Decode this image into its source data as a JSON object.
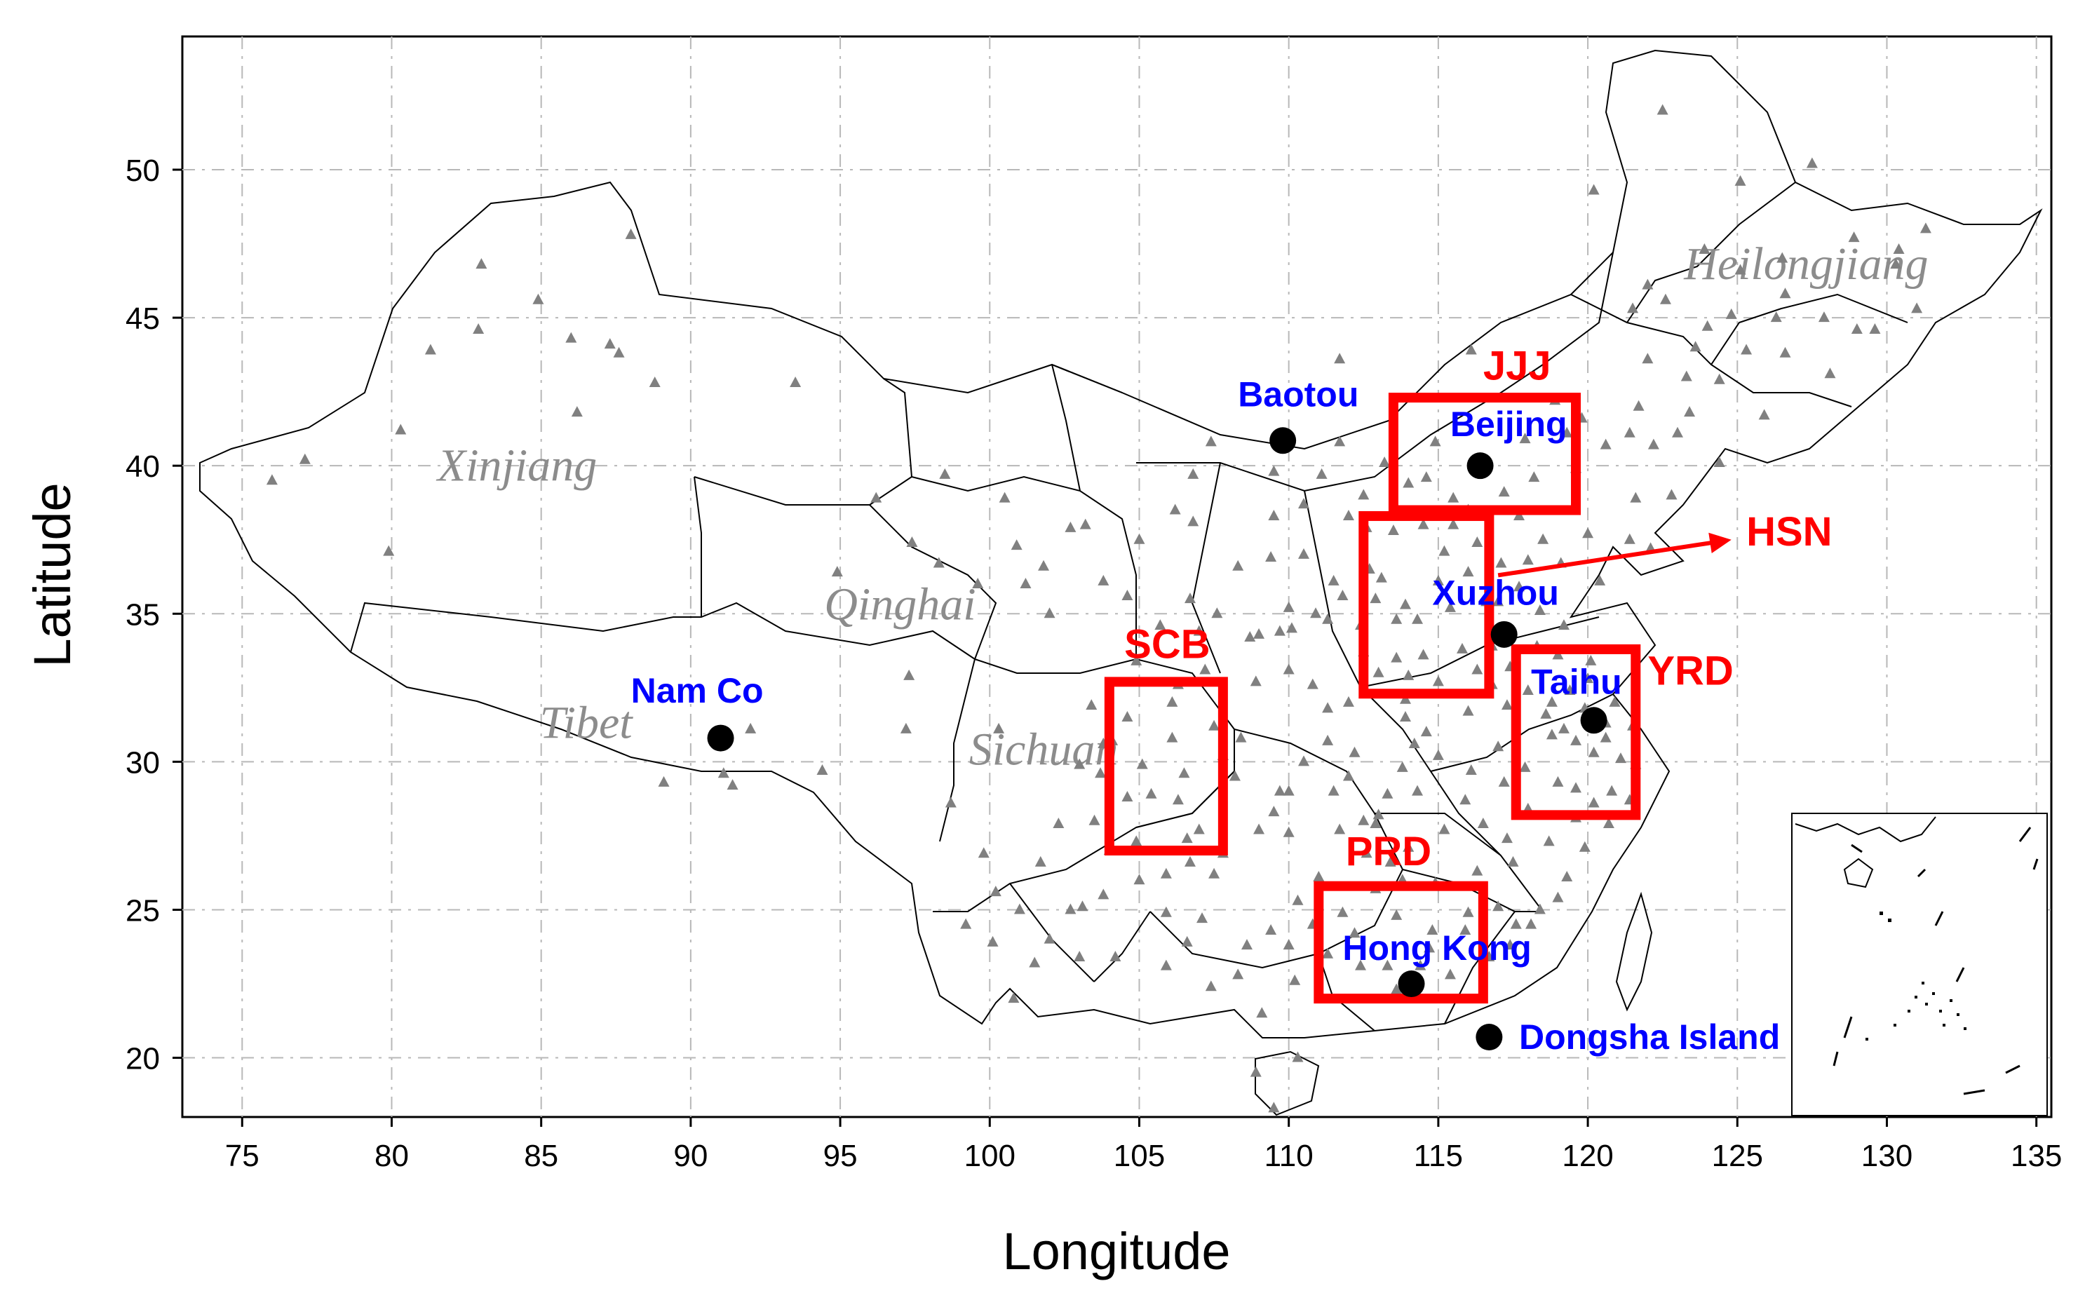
{
  "axes": {
    "xlabel": "Longitude",
    "ylabel": "Latitude",
    "x_ticks": [
      75,
      80,
      85,
      90,
      95,
      100,
      105,
      110,
      115,
      120,
      125,
      130,
      135
    ],
    "y_ticks": [
      20,
      25,
      30,
      35,
      40,
      45,
      50
    ],
    "xlim": [
      73,
      135.5
    ],
    "ylim": [
      18,
      54.5
    ],
    "grid": true
  },
  "regions": [
    {
      "name": "Xinjiang",
      "lon": 84.2,
      "lat": 39.5
    },
    {
      "name": "Qinghai",
      "lon": 97.0,
      "lat": 34.8
    },
    {
      "name": "Tibet",
      "lon": 86.5,
      "lat": 30.8
    },
    {
      "name": "Sichuan",
      "lon": 101.8,
      "lat": 29.9
    },
    {
      "name": "Heilongjiang",
      "lon": 127.3,
      "lat": 46.3
    }
  ],
  "sites": [
    {
      "name": "Baotou",
      "lon": 109.8,
      "lat": 40.85,
      "label_lon": 108.3,
      "label_lat": 42.0
    },
    {
      "name": "Beijing",
      "lon": 116.4,
      "lat": 40.0,
      "label_lon": 115.4,
      "label_lat": 41.0
    },
    {
      "name": "Xuzhou",
      "lon": 117.2,
      "lat": 34.3,
      "label_lon": 114.8,
      "label_lat": 35.3
    },
    {
      "name": "Taihu",
      "lon": 120.2,
      "lat": 31.4,
      "label_lon": 118.1,
      "label_lat": 32.3
    },
    {
      "name": "Nam Co",
      "lon": 91.0,
      "lat": 30.8,
      "label_lon": 88.0,
      "label_lat": 32.0
    },
    {
      "name": "Hong Kong",
      "lon": 114.1,
      "lat": 22.5,
      "label_lon": 111.8,
      "label_lat": 23.3
    },
    {
      "name": "Dongsha Island",
      "lon": 116.7,
      "lat": 20.7,
      "label_lon": 117.7,
      "label_lat": 20.3
    }
  ],
  "study_boxes": [
    {
      "name": "JJJ",
      "lon_min": 113.5,
      "lon_max": 119.6,
      "lat_min": 38.5,
      "lat_max": 42.3,
      "label_lon": 116.5,
      "label_lat": 42.9
    },
    {
      "name": "HSN",
      "lon_min": 112.5,
      "lon_max": 116.7,
      "lat_min": 32.3,
      "lat_max": 38.3,
      "label_lon": 125.3,
      "label_lat": 37.3
    },
    {
      "name": "YRD",
      "lon_min": 117.6,
      "lon_max": 121.6,
      "lat_min": 28.2,
      "lat_max": 33.8,
      "label_lon": 122.0,
      "label_lat": 32.6
    },
    {
      "name": "SCB",
      "lon_min": 104.0,
      "lon_max": 107.8,
      "lat_min": 27.0,
      "lat_max": 32.7,
      "label_lon": 104.5,
      "label_lat": 33.5
    },
    {
      "name": "PRD",
      "lon_min": 111.0,
      "lon_max": 116.5,
      "lat_min": 22.0,
      "lat_max": 25.8,
      "label_lon": 111.9,
      "label_lat": 26.5
    }
  ],
  "hsn_arrow": {
    "from_lon": 117.0,
    "from_lat": 36.3,
    "to_lon": 124.8,
    "to_lat": 37.5
  },
  "stations": [
    [
      76.0,
      39.5
    ],
    [
      77.1,
      40.2
    ],
    [
      80.3,
      41.2
    ],
    [
      79.9,
      37.1
    ],
    [
      81.3,
      43.9
    ],
    [
      82.9,
      44.6
    ],
    [
      84.9,
      45.6
    ],
    [
      86.0,
      44.3
    ],
    [
      86.2,
      41.8
    ],
    [
      87.3,
      44.1
    ],
    [
      87.6,
      43.8
    ],
    [
      88.0,
      47.8
    ],
    [
      88.8,
      42.8
    ],
    [
      93.5,
      42.8
    ],
    [
      83.0,
      46.8
    ],
    [
      89.1,
      29.3
    ],
    [
      91.1,
      29.6
    ],
    [
      91.4,
      29.2
    ],
    [
      92.0,
      31.1
    ],
    [
      94.4,
      29.7
    ],
    [
      97.2,
      31.1
    ],
    [
      98.7,
      28.6
    ],
    [
      99.8,
      26.9
    ],
    [
      98.5,
      39.7
    ],
    [
      100.5,
      38.9
    ],
    [
      101.8,
      36.6
    ],
    [
      103.8,
      36.1
    ],
    [
      102.7,
      37.9
    ],
    [
      104.6,
      35.6
    ],
    [
      105.7,
      34.6
    ],
    [
      106.7,
      35.5
    ],
    [
      107.6,
      35.0
    ],
    [
      109.0,
      34.3
    ],
    [
      108.3,
      36.6
    ],
    [
      109.5,
      38.3
    ],
    [
      110.5,
      37.0
    ],
    [
      106.2,
      38.5
    ],
    [
      106.8,
      39.7
    ],
    [
      105.0,
      37.5
    ],
    [
      107.4,
      40.8
    ],
    [
      111.7,
      40.8
    ],
    [
      112.6,
      37.9
    ],
    [
      112.5,
      39.0
    ],
    [
      111.5,
      36.1
    ],
    [
      110.0,
      35.2
    ],
    [
      113.1,
      36.2
    ],
    [
      112.9,
      35.5
    ],
    [
      111.3,
      34.8
    ],
    [
      113.6,
      34.8
    ],
    [
      114.3,
      34.8
    ],
    [
      112.4,
      34.6
    ],
    [
      110.8,
      32.6
    ],
    [
      111.3,
      30.7
    ],
    [
      112.2,
      30.3
    ],
    [
      113.0,
      33.0
    ],
    [
      114.2,
      30.6
    ],
    [
      113.9,
      31.5
    ],
    [
      115.0,
      30.2
    ],
    [
      113.0,
      28.2
    ],
    [
      112.9,
      27.9
    ],
    [
      111.7,
      27.7
    ],
    [
      110.0,
      27.6
    ],
    [
      109.5,
      28.3
    ],
    [
      112.6,
      26.9
    ],
    [
      113.4,
      26.6
    ],
    [
      114.0,
      27.1
    ],
    [
      115.9,
      28.7
    ],
    [
      116.5,
      27.9
    ],
    [
      117.2,
      29.3
    ],
    [
      118.0,
      28.4
    ],
    [
      119.0,
      29.3
    ],
    [
      119.6,
      29.1
    ],
    [
      120.2,
      30.3
    ],
    [
      121.5,
      31.2
    ],
    [
      120.6,
      31.3
    ],
    [
      119.9,
      31.8
    ],
    [
      118.8,
      32.0
    ],
    [
      119.4,
      32.4
    ],
    [
      120.9,
      32.0
    ],
    [
      117.3,
      31.9
    ],
    [
      117.0,
      30.5
    ],
    [
      116.0,
      31.7
    ],
    [
      115.8,
      33.8
    ],
    [
      116.8,
      33.9
    ],
    [
      117.4,
      33.2
    ],
    [
      118.3,
      33.9
    ],
    [
      119.0,
      33.6
    ],
    [
      120.1,
      33.4
    ],
    [
      119.2,
      34.6
    ],
    [
      118.4,
      35.1
    ],
    [
      117.0,
      35.4
    ],
    [
      116.6,
      35.4
    ],
    [
      117.1,
      36.7
    ],
    [
      118.0,
      36.8
    ],
    [
      119.1,
      36.7
    ],
    [
      120.4,
      36.1
    ],
    [
      121.4,
      37.5
    ],
    [
      122.1,
      37.2
    ],
    [
      116.3,
      37.4
    ],
    [
      115.5,
      38.0
    ],
    [
      114.5,
      38.0
    ],
    [
      115.5,
      38.9
    ],
    [
      114.9,
      40.8
    ],
    [
      117.9,
      40.9
    ],
    [
      117.2,
      39.1
    ],
    [
      116.4,
      39.9
    ],
    [
      118.2,
      39.6
    ],
    [
      119.6,
      39.9
    ],
    [
      121.6,
      38.9
    ],
    [
      122.2,
      40.7
    ],
    [
      123.4,
      41.8
    ],
    [
      124.4,
      40.1
    ],
    [
      125.3,
      43.9
    ],
    [
      126.6,
      45.8
    ],
    [
      123.9,
      47.3
    ],
    [
      129.6,
      44.6
    ],
    [
      130.3,
      46.8
    ],
    [
      124.8,
      45.1
    ],
    [
      125.1,
      46.6
    ],
    [
      131.0,
      45.3
    ],
    [
      127.5,
      50.2
    ],
    [
      120.2,
      49.3
    ],
    [
      122.5,
      52.0
    ],
    [
      119.8,
      41.6
    ],
    [
      122.0,
      43.6
    ],
    [
      116.1,
      43.9
    ],
    [
      111.7,
      43.6
    ],
    [
      103.8,
      30.6
    ],
    [
      104.1,
      30.7
    ],
    [
      104.6,
      31.5
    ],
    [
      105.1,
      29.9
    ],
    [
      106.5,
      29.6
    ],
    [
      106.1,
      30.8
    ],
    [
      107.5,
      31.2
    ],
    [
      105.4,
      28.9
    ],
    [
      104.6,
      28.8
    ],
    [
      103.7,
      29.6
    ],
    [
      103.0,
      29.9
    ],
    [
      102.3,
      27.9
    ],
    [
      101.7,
      26.6
    ],
    [
      102.7,
      25.0
    ],
    [
      103.8,
      25.5
    ],
    [
      100.2,
      25.6
    ],
    [
      100.8,
      22.0
    ],
    [
      100.1,
      23.9
    ],
    [
      104.2,
      23.4
    ],
    [
      106.7,
      26.6
    ],
    [
      105.9,
      26.2
    ],
    [
      107.5,
      26.2
    ],
    [
      108.3,
      22.8
    ],
    [
      109.4,
      24.3
    ],
    [
      110.3,
      25.3
    ],
    [
      111.3,
      23.5
    ],
    [
      110.2,
      22.6
    ],
    [
      109.1,
      21.5
    ],
    [
      112.4,
      23.1
    ],
    [
      113.3,
      23.1
    ],
    [
      114.1,
      22.6
    ],
    [
      113.6,
      22.3
    ],
    [
      114.4,
      23.1
    ],
    [
      115.4,
      22.8
    ],
    [
      116.7,
      23.4
    ],
    [
      115.9,
      24.3
    ],
    [
      113.6,
      24.8
    ],
    [
      114.7,
      23.7
    ],
    [
      117.6,
      24.5
    ],
    [
      118.1,
      24.5
    ],
    [
      119.3,
      26.1
    ],
    [
      118.4,
      25.0
    ],
    [
      117.0,
      25.1
    ],
    [
      119.0,
      25.4
    ],
    [
      120.7,
      27.9
    ],
    [
      121.4,
      28.7
    ],
    [
      121.6,
      29.9
    ],
    [
      118.8,
      30.9
    ],
    [
      110.3,
      20.0
    ],
    [
      109.5,
      18.3
    ],
    [
      108.9,
      19.5
    ],
    [
      96.2,
      38.9
    ],
    [
      98.3,
      36.7
    ],
    [
      102.0,
      35.0
    ],
    [
      94.9,
      36.4
    ],
    [
      97.4,
      37.4
    ],
    [
      100.9,
      37.3
    ],
    [
      104.9,
      33.4
    ],
    [
      106.1,
      32.0
    ],
    [
      107.2,
      33.1
    ],
    [
      108.9,
      32.7
    ],
    [
      109.7,
      34.4
    ],
    [
      108.7,
      34.2
    ],
    [
      110.5,
      30.0
    ],
    [
      109.7,
      29.0
    ],
    [
      110.8,
      24.5
    ],
    [
      106.6,
      23.9
    ],
    [
      105.9,
      24.9
    ],
    [
      107.1,
      24.7
    ],
    [
      112.2,
      24.2
    ],
    [
      111.5,
      29.0
    ],
    [
      113.8,
      29.8
    ],
    [
      115.2,
      27.7
    ],
    [
      114.9,
      25.9
    ],
    [
      116.3,
      26.3
    ],
    [
      118.7,
      27.3
    ],
    [
      117.5,
      26.6
    ],
    [
      112.0,
      32.0
    ],
    [
      112.5,
      33.7
    ],
    [
      114.5,
      33.6
    ],
    [
      113.9,
      35.3
    ],
    [
      115.0,
      36.1
    ],
    [
      116.0,
      36.4
    ],
    [
      115.2,
      37.1
    ],
    [
      116.0,
      38.5
    ],
    [
      117.7,
      38.3
    ],
    [
      113.5,
      37.8
    ],
    [
      112.0,
      38.3
    ],
    [
      111.1,
      39.7
    ],
    [
      113.2,
      40.1
    ],
    [
      109.5,
      39.8
    ],
    [
      106.8,
      38.1
    ],
    [
      103.2,
      38.0
    ],
    [
      101.2,
      36.0
    ],
    [
      99.6,
      36.0
    ],
    [
      97.3,
      32.9
    ],
    [
      100.3,
      31.1
    ],
    [
      103.4,
      31.9
    ],
    [
      106.3,
      32.6
    ],
    [
      107.8,
      30.2
    ],
    [
      108.4,
      30.8
    ],
    [
      106.3,
      28.7
    ],
    [
      107.0,
      27.7
    ],
    [
      104.9,
      27.3
    ],
    [
      103.1,
      25.1
    ],
    [
      101.5,
      23.2
    ],
    [
      105.9,
      23.1
    ],
    [
      107.4,
      22.4
    ],
    [
      108.6,
      23.8
    ],
    [
      111.0,
      26.1
    ],
    [
      113.3,
      28.9
    ],
    [
      114.6,
      31.0
    ],
    [
      116.1,
      29.7
    ],
    [
      117.9,
      29.8
    ],
    [
      119.6,
      30.7
    ],
    [
      120.6,
      30.8
    ],
    [
      121.1,
      30.1
    ],
    [
      120.8,
      29.0
    ],
    [
      120.2,
      28.6
    ],
    [
      119.6,
      28.1
    ],
    [
      119.9,
      27.1
    ],
    [
      117.3,
      27.4
    ],
    [
      116.0,
      24.9
    ],
    [
      117.4,
      23.8
    ],
    [
      120.0,
      32.8
    ],
    [
      118.6,
      31.6
    ],
    [
      116.8,
      32.6
    ],
    [
      115.0,
      32.7
    ],
    [
      113.9,
      32.1
    ],
    [
      111.3,
      31.8
    ],
    [
      110.0,
      33.1
    ],
    [
      107.0,
      34.4
    ],
    [
      109.4,
      36.9
    ],
    [
      110.5,
      38.7
    ],
    [
      114.0,
      39.4
    ],
    [
      114.6,
      39.6
    ],
    [
      118.9,
      42.2
    ],
    [
      121.7,
      42.0
    ],
    [
      123.0,
      41.1
    ],
    [
      124.4,
      42.9
    ],
    [
      126.6,
      43.8
    ],
    [
      127.9,
      45.0
    ],
    [
      128.9,
      47.7
    ],
    [
      131.3,
      48.0
    ],
    [
      125.9,
      41.7
    ],
    [
      121.4,
      41.1
    ],
    [
      123.6,
      44.0
    ],
    [
      121.5,
      45.3
    ],
    [
      124.0,
      44.7
    ],
    [
      122.8,
      39.0
    ],
    [
      120.6,
      40.7
    ],
    [
      119.3,
      41.1
    ],
    [
      126.5,
      47.0
    ],
    [
      125.1,
      49.6
    ],
    [
      129.0,
      44.6
    ],
    [
      130.4,
      47.3
    ],
    [
      128.1,
      43.1
    ],
    [
      126.3,
      45.0
    ],
    [
      122.0,
      46.1
    ],
    [
      122.6,
      45.6
    ],
    [
      123.3,
      43.0
    ],
    [
      120.0,
      37.7
    ],
    [
      118.5,
      37.5
    ],
    [
      117.7,
      35.9
    ],
    [
      115.4,
      35.2
    ],
    [
      112.7,
      36.5
    ],
    [
      111.8,
      35.6
    ],
    [
      110.9,
      35.0
    ],
    [
      110.1,
      34.5
    ],
    [
      113.6,
      33.5
    ],
    [
      114.0,
      32.9
    ],
    [
      116.3,
      33.1
    ],
    [
      118.0,
      32.4
    ],
    [
      119.2,
      31.1
    ],
    [
      114.3,
      29.0
    ],
    [
      112.0,
      29.5
    ],
    [
      110.0,
      29.0
    ],
    [
      109.0,
      27.7
    ],
    [
      108.2,
      29.5
    ],
    [
      103.5,
      28.0
    ],
    [
      104.0,
      27.0
    ],
    [
      105.0,
      26.0
    ],
    [
      101.0,
      25.0
    ],
    [
      102.0,
      24.0
    ],
    [
      99.2,
      24.5
    ],
    [
      103.0,
      23.4
    ],
    [
      106.6,
      27.4
    ],
    [
      107.8,
      26.9
    ],
    [
      112.5,
      28.0
    ],
    [
      113.8,
      26.0
    ],
    [
      114.8,
      24.3
    ],
    [
      112.9,
      25.7
    ],
    [
      111.8,
      24.9
    ],
    [
      110.0,
      23.8
    ]
  ]
}
